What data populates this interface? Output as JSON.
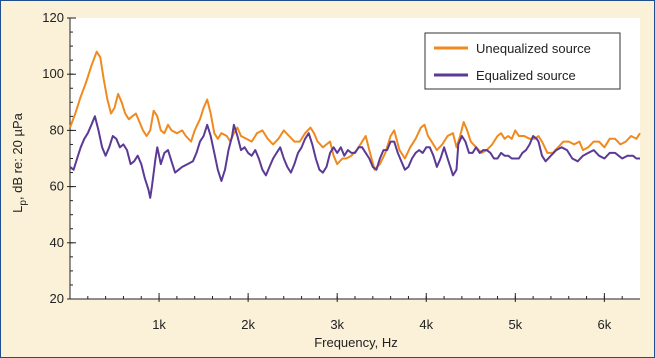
{
  "chart_data": {
    "type": "line",
    "title": "",
    "xlabel": "Frequency, Hz",
    "ylabel_main": "L",
    "ylabel_sub": "p",
    "ylabel_rest": ", dB re: 20 µPa",
    "xlim": [
      0,
      6400
    ],
    "ylim": [
      20,
      120
    ],
    "yticks": [
      20,
      40,
      60,
      80,
      100,
      120
    ],
    "xticks": [
      {
        "value": 1000,
        "label": "1k"
      },
      {
        "value": 2000,
        "label": "2k"
      },
      {
        "value": 3000,
        "label": "3k"
      },
      {
        "value": 4000,
        "label": "4k"
      },
      {
        "value": 5000,
        "label": "5k"
      },
      {
        "value": 6000,
        "label": "6k"
      }
    ],
    "minor_x_step": 200,
    "minor_y_step": 5,
    "grid": false,
    "legend_position": "top-right",
    "series": [
      {
        "name": "Unequalized source",
        "color": "#f08a1e",
        "points": [
          [
            0,
            81
          ],
          [
            60,
            86
          ],
          [
            120,
            92
          ],
          [
            180,
            97
          ],
          [
            240,
            103
          ],
          [
            300,
            108
          ],
          [
            340,
            106
          ],
          [
            380,
            98
          ],
          [
            420,
            91
          ],
          [
            460,
            86
          ],
          [
            500,
            88
          ],
          [
            540,
            93
          ],
          [
            580,
            90
          ],
          [
            620,
            86
          ],
          [
            660,
            84
          ],
          [
            700,
            85
          ],
          [
            740,
            86
          ],
          [
            780,
            83
          ],
          [
            820,
            80
          ],
          [
            860,
            78
          ],
          [
            900,
            80
          ],
          [
            940,
            87
          ],
          [
            980,
            85
          ],
          [
            1020,
            80
          ],
          [
            1060,
            79
          ],
          [
            1100,
            82
          ],
          [
            1140,
            80
          ],
          [
            1200,
            79
          ],
          [
            1260,
            80
          ],
          [
            1300,
            78
          ],
          [
            1360,
            76
          ],
          [
            1400,
            80
          ],
          [
            1460,
            84
          ],
          [
            1500,
            88
          ],
          [
            1540,
            91
          ],
          [
            1580,
            86
          ],
          [
            1620,
            79
          ],
          [
            1660,
            77
          ],
          [
            1700,
            79
          ],
          [
            1760,
            78
          ],
          [
            1800,
            76
          ],
          [
            1840,
            79
          ],
          [
            1880,
            81
          ],
          [
            1920,
            78
          ],
          [
            1980,
            77
          ],
          [
            2040,
            76
          ],
          [
            2100,
            79
          ],
          [
            2160,
            80
          ],
          [
            2220,
            77
          ],
          [
            2280,
            75
          ],
          [
            2340,
            77
          ],
          [
            2400,
            80
          ],
          [
            2460,
            78
          ],
          [
            2520,
            76
          ],
          [
            2580,
            76
          ],
          [
            2640,
            79
          ],
          [
            2700,
            81
          ],
          [
            2740,
            79
          ],
          [
            2780,
            76
          ],
          [
            2840,
            74
          ],
          [
            2880,
            75
          ],
          [
            2920,
            76
          ],
          [
            2960,
            71
          ],
          [
            3000,
            68
          ],
          [
            3060,
            70
          ],
          [
            3100,
            70
          ],
          [
            3160,
            71
          ],
          [
            3220,
            73
          ],
          [
            3280,
            76
          ],
          [
            3320,
            78
          ],
          [
            3360,
            73
          ],
          [
            3420,
            66
          ],
          [
            3480,
            68
          ],
          [
            3540,
            72
          ],
          [
            3600,
            78
          ],
          [
            3640,
            80
          ],
          [
            3700,
            73
          ],
          [
            3760,
            70
          ],
          [
            3820,
            74
          ],
          [
            3880,
            77
          ],
          [
            3940,
            81
          ],
          [
            3980,
            82
          ],
          [
            4020,
            78
          ],
          [
            4060,
            76
          ],
          [
            4120,
            73
          ],
          [
            4180,
            75
          ],
          [
            4240,
            78
          ],
          [
            4300,
            79
          ],
          [
            4340,
            74
          ],
          [
            4380,
            78
          ],
          [
            4420,
            83
          ],
          [
            4460,
            80
          ],
          [
            4500,
            76
          ],
          [
            4560,
            74
          ],
          [
            4620,
            72
          ],
          [
            4680,
            73
          ],
          [
            4740,
            75
          ],
          [
            4800,
            78
          ],
          [
            4840,
            79
          ],
          [
            4880,
            77
          ],
          [
            4920,
            78
          ],
          [
            4960,
            77
          ],
          [
            5000,
            80
          ],
          [
            5040,
            78
          ],
          [
            5100,
            78
          ],
          [
            5160,
            77
          ],
          [
            5220,
            77
          ],
          [
            5260,
            78
          ],
          [
            5300,
            76
          ],
          [
            5360,
            72
          ],
          [
            5420,
            72
          ],
          [
            5480,
            74
          ],
          [
            5540,
            76
          ],
          [
            5600,
            76
          ],
          [
            5660,
            75
          ],
          [
            5720,
            76
          ],
          [
            5760,
            73
          ],
          [
            5820,
            74
          ],
          [
            5880,
            76
          ],
          [
            5940,
            76
          ],
          [
            6000,
            74
          ],
          [
            6060,
            77
          ],
          [
            6120,
            77
          ],
          [
            6180,
            75
          ],
          [
            6240,
            76
          ],
          [
            6300,
            78
          ],
          [
            6360,
            77
          ],
          [
            6400,
            79
          ]
        ]
      },
      {
        "name": "Equalized source",
        "color": "#5b3a96",
        "points": [
          [
            0,
            67
          ],
          [
            40,
            66
          ],
          [
            80,
            70
          ],
          [
            120,
            74
          ],
          [
            160,
            77
          ],
          [
            200,
            79
          ],
          [
            240,
            82
          ],
          [
            280,
            85
          ],
          [
            320,
            80
          ],
          [
            360,
            74
          ],
          [
            400,
            71
          ],
          [
            440,
            74
          ],
          [
            480,
            78
          ],
          [
            520,
            77
          ],
          [
            560,
            74
          ],
          [
            600,
            75
          ],
          [
            640,
            73
          ],
          [
            680,
            68
          ],
          [
            720,
            69
          ],
          [
            760,
            71
          ],
          [
            800,
            68
          ],
          [
            840,
            63
          ],
          [
            880,
            59
          ],
          [
            900,
            56
          ],
          [
            920,
            60
          ],
          [
            960,
            70
          ],
          [
            980,
            74
          ],
          [
            1000,
            71
          ],
          [
            1020,
            68
          ],
          [
            1060,
            72
          ],
          [
            1100,
            73
          ],
          [
            1140,
            69
          ],
          [
            1180,
            65
          ],
          [
            1220,
            66
          ],
          [
            1260,
            67
          ],
          [
            1320,
            68
          ],
          [
            1380,
            69
          ],
          [
            1420,
            72
          ],
          [
            1460,
            76
          ],
          [
            1500,
            78
          ],
          [
            1540,
            82
          ],
          [
            1580,
            78
          ],
          [
            1620,
            72
          ],
          [
            1660,
            66
          ],
          [
            1700,
            62
          ],
          [
            1740,
            66
          ],
          [
            1780,
            73
          ],
          [
            1820,
            78
          ],
          [
            1840,
            82
          ],
          [
            1880,
            78
          ],
          [
            1920,
            73
          ],
          [
            1960,
            74
          ],
          [
            2000,
            72
          ],
          [
            2040,
            71
          ],
          [
            2080,
            73
          ],
          [
            2120,
            70
          ],
          [
            2160,
            66
          ],
          [
            2200,
            64
          ],
          [
            2240,
            67
          ],
          [
            2280,
            70
          ],
          [
            2320,
            72
          ],
          [
            2360,
            74
          ],
          [
            2400,
            70
          ],
          [
            2440,
            67
          ],
          [
            2480,
            65
          ],
          [
            2520,
            68
          ],
          [
            2560,
            72
          ],
          [
            2600,
            74
          ],
          [
            2640,
            77
          ],
          [
            2680,
            79
          ],
          [
            2720,
            75
          ],
          [
            2760,
            70
          ],
          [
            2800,
            66
          ],
          [
            2840,
            65
          ],
          [
            2880,
            67
          ],
          [
            2920,
            72
          ],
          [
            2960,
            74
          ],
          [
            3000,
            72
          ],
          [
            3040,
            74
          ],
          [
            3080,
            71
          ],
          [
            3120,
            73
          ],
          [
            3160,
            72
          ],
          [
            3200,
            72
          ],
          [
            3240,
            74
          ],
          [
            3280,
            74
          ],
          [
            3320,
            72
          ],
          [
            3360,
            70
          ],
          [
            3400,
            67
          ],
          [
            3440,
            66
          ],
          [
            3480,
            70
          ],
          [
            3520,
            73
          ],
          [
            3560,
            73
          ],
          [
            3600,
            76
          ],
          [
            3640,
            76
          ],
          [
            3680,
            72
          ],
          [
            3720,
            69
          ],
          [
            3760,
            66
          ],
          [
            3800,
            67
          ],
          [
            3840,
            70
          ],
          [
            3880,
            72
          ],
          [
            3920,
            73
          ],
          [
            3960,
            72
          ],
          [
            4000,
            74
          ],
          [
            4040,
            74
          ],
          [
            4080,
            71
          ],
          [
            4120,
            67
          ],
          [
            4160,
            70
          ],
          [
            4200,
            74
          ],
          [
            4240,
            70
          ],
          [
            4280,
            66
          ],
          [
            4300,
            64
          ],
          [
            4340,
            66
          ],
          [
            4360,
            75
          ],
          [
            4400,
            78
          ],
          [
            4440,
            76
          ],
          [
            4480,
            72
          ],
          [
            4520,
            72
          ],
          [
            4560,
            74
          ],
          [
            4600,
            72
          ],
          [
            4640,
            73
          ],
          [
            4680,
            73
          ],
          [
            4720,
            72
          ],
          [
            4760,
            70
          ],
          [
            4800,
            70
          ],
          [
            4840,
            72
          ],
          [
            4880,
            71
          ],
          [
            4920,
            71
          ],
          [
            4960,
            70
          ],
          [
            5000,
            70
          ],
          [
            5040,
            70
          ],
          [
            5080,
            72
          ],
          [
            5120,
            73
          ],
          [
            5160,
            75
          ],
          [
            5200,
            78
          ],
          [
            5240,
            77
          ],
          [
            5260,
            76
          ],
          [
            5300,
            71
          ],
          [
            5340,
            69
          ],
          [
            5400,
            71
          ],
          [
            5460,
            73
          ],
          [
            5520,
            74
          ],
          [
            5580,
            73
          ],
          [
            5640,
            70
          ],
          [
            5700,
            69
          ],
          [
            5760,
            71
          ],
          [
            5820,
            72
          ],
          [
            5880,
            73
          ],
          [
            5940,
            71
          ],
          [
            6000,
            70
          ],
          [
            6060,
            72
          ],
          [
            6120,
            72
          ],
          [
            6160,
            71
          ],
          [
            6200,
            70
          ],
          [
            6260,
            71
          ],
          [
            6320,
            71
          ],
          [
            6360,
            70
          ],
          [
            6400,
            70
          ]
        ]
      }
    ]
  }
}
